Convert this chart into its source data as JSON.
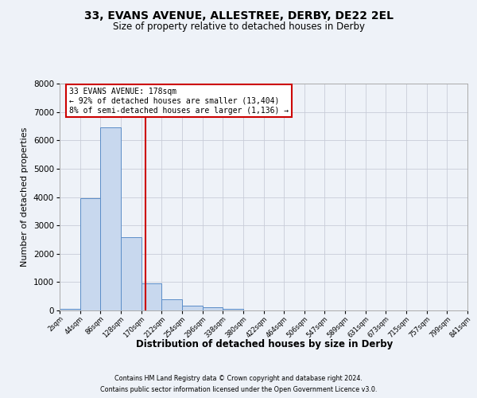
{
  "title_line1": "33, EVANS AVENUE, ALLESTREE, DERBY, DE22 2EL",
  "title_line2": "Size of property relative to detached houses in Derby",
  "xlabel": "Distribution of detached houses by size in Derby",
  "ylabel": "Number of detached properties",
  "footer_line1": "Contains HM Land Registry data © Crown copyright and database right 2024.",
  "footer_line2": "Contains public sector information licensed under the Open Government Licence v3.0.",
  "annotation_line1": "33 EVANS AVENUE: 178sqm",
  "annotation_line2": "← 92% of detached houses are smaller (13,404)",
  "annotation_line3": "8% of semi-detached houses are larger (1,136) →",
  "bin_edges": [
    2,
    44,
    86,
    128,
    170,
    212,
    254,
    296,
    338,
    380,
    422,
    464,
    506,
    547,
    589,
    631,
    673,
    715,
    757,
    799,
    841
  ],
  "bin_labels": [
    "2sqm",
    "44sqm",
    "86sqm",
    "128sqm",
    "170sqm",
    "212sqm",
    "254sqm",
    "296sqm",
    "338sqm",
    "380sqm",
    "422sqm",
    "464sqm",
    "506sqm",
    "547sqm",
    "589sqm",
    "631sqm",
    "673sqm",
    "715sqm",
    "757sqm",
    "799sqm",
    "841sqm"
  ],
  "bar_values": [
    50,
    3950,
    6450,
    2580,
    950,
    390,
    155,
    100,
    55,
    0,
    0,
    0,
    0,
    0,
    0,
    0,
    0,
    0,
    0,
    0
  ],
  "bar_color": "#c8d8ee",
  "bar_edge_color": "#5b8dc8",
  "vline_color": "#cc0000",
  "vline_x": 178,
  "background_color": "#eef2f8",
  "ylim": [
    0,
    8000
  ],
  "yticks": [
    0,
    1000,
    2000,
    3000,
    4000,
    5000,
    6000,
    7000,
    8000
  ],
  "grid_color": "#c8ccd8"
}
